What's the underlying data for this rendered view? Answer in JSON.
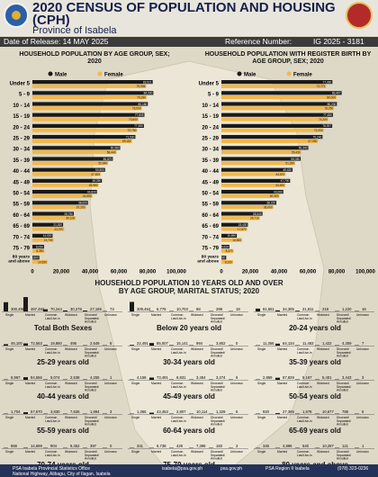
{
  "header": {
    "title": "2020 CENSUS OF POPULATION AND HOUSING (CPH)",
    "province": "Province of  Isabela",
    "date_label": "Date of Release: 14 MAY 2025",
    "ref_label": "Reference Number:",
    "ref_value": "IG 2025 - 3181"
  },
  "section1": {
    "left_title": "HOUSEHOLD POPULATION BY AGE GROUP, SEX; 2020",
    "right_title": "HOUSEHOLD POPULATION WITH REGISTER BIRTH BY AGE GROUP, SEX; 2020"
  },
  "section2": {
    "title_line1": "HOUSEHOLD POPULATION 10 YEARS OLD AND OVER",
    "title_line2": "BY AGE GROUP, MARITAL STATUS; 2020"
  },
  "colors": {
    "male": "#1a1a1a",
    "female": "#f2b84b"
  },
  "chart_data": [
    {
      "type": "bar",
      "title": "HOUSEHOLD POPULATION BY AGE GROUP, SEX; 2020",
      "orientation": "horizontal",
      "categories": [
        "Under 5",
        "5 - 9",
        "10 - 14",
        "15 - 19",
        "20 - 24",
        "25 - 29",
        "30 - 34",
        "35 - 39",
        "40 - 44",
        "45 - 49",
        "50 - 54",
        "55 - 59",
        "60 - 64",
        "65 - 69",
        "70 - 74",
        "75 - 79",
        "80 years and above"
      ],
      "series": [
        {
          "name": "Male",
          "values": [
            83521,
            84000,
            80180,
            77805,
            77450,
            71530,
            60960,
            55870,
            50500,
            48250,
            44800,
            38600,
            28750,
            21300,
            14000,
            8050,
            4800
          ]
        },
        {
          "name": "Female",
          "values": [
            79006,
            79330,
            76000,
            73600,
            72750,
            69180,
            58440,
            52640,
            47520,
            45960,
            41650,
            37200,
            30100,
            22070,
            14740,
            8350,
            10550
          ]
        }
      ],
      "xlim": [
        0,
        100000
      ],
      "xticks": [
        "0",
        "20,000",
        "40,000",
        "60,000",
        "80,000",
        "100,000"
      ],
      "legend": [
        "Male",
        "Female"
      ],
      "legend_position": "top"
    },
    {
      "type": "bar",
      "title": "HOUSEHOLD POPULATION WITH REGISTER BIRTH BY AGE GROUP, SEX; 2020",
      "orientation": "horizontal",
      "categories": [
        "Under 5",
        "5 - 9",
        "10 - 14",
        "15 - 19",
        "20 - 24",
        "25 - 29",
        "30 - 34",
        "35 - 39",
        "40 - 44",
        "45 - 49",
        "50 - 54",
        "55 - 59",
        "60 - 64",
        "65 - 69",
        "70 - 74",
        "75 - 79",
        "80 years and above"
      ],
      "series": [
        {
          "name": "Male",
          "values": [
            77060,
            83497,
            80200,
            77450,
            76937,
            70240,
            60340,
            55030,
            49420,
            47700,
            43000,
            38150,
            28540,
            18400,
            10690,
            5520,
            3320
          ]
        },
        {
          "name": "Female",
          "values": [
            72771,
            80000,
            78250,
            74200,
            71000,
            67050,
            55430,
            51290,
            44570,
            44400,
            40300,
            36000,
            26710,
            17870,
            14360,
            8470,
            8100
          ]
        }
      ],
      "xlim": [
        0,
        100000
      ],
      "xticks": [
        "0",
        "20,000",
        "40,000",
        "60,000",
        "80,000",
        "100,000"
      ],
      "legend": [
        "Male",
        "Female"
      ],
      "legend_position": "top"
    },
    {
      "type": "bar",
      "title": "HOUSEHOLD POPULATION 10 YEARS OLD AND OVER BY AGE GROUP, MARITAL STATUS; 2020",
      "categories": [
        "Single",
        "Married",
        "Common Law/Live-in",
        "Widowed",
        "Divorced/Separated/Annulled",
        "Unknown"
      ],
      "category_labels": [
        [
          "Single"
        ],
        [
          "Married"
        ],
        [
          "Common",
          "Law/Live-in"
        ],
        [
          "Widowed"
        ],
        [
          "Divorced/",
          "Separated/",
          "Annulled"
        ],
        [
          "Unknown"
        ]
      ],
      "panels": [
        {
          "name": "Total Both Sexes",
          "values": [
            300499,
            467492,
            70244,
            30278,
            27169,
            73
          ]
        },
        {
          "name": "Below 20 years old",
          "values": [
            309454,
            6776,
            10703,
            68,
            299,
            18
          ]
        },
        {
          "name": "20-24 years old",
          "values": [
            91561,
            34305,
            21811,
            218,
            1220,
            16
          ]
        },
        {
          "name": "25-29 years old",
          "values": [
            46100,
            72563,
            19880,
            495,
            2649,
            6
          ]
        },
        {
          "name": "30-34 years old",
          "values": [
            22491,
            85007,
            15141,
            994,
            3802,
            0
          ]
        },
        {
          "name": "35-39 years old",
          "values": [
            11356,
            64134,
            11483,
            1422,
            4309,
            7
          ]
        },
        {
          "name": "40-44 years old",
          "values": [
            6967,
            84556,
            9074,
            2538,
            4255,
            1
          ]
        },
        {
          "name": "45-49 years old",
          "values": [
            4158,
            73491,
            6831,
            3454,
            3274,
            6
          ]
        },
        {
          "name": "50-54 years old",
          "values": [
            2859,
            67829,
            5167,
            5401,
            3443,
            3
          ]
        },
        {
          "name": "55-59 years old",
          "values": [
            1704,
            57670,
            3830,
            7626,
            1994,
            3
          ]
        },
        {
          "name": "60-64 years old",
          "values": [
            1366,
            43453,
            2807,
            10114,
            1329,
            6
          ]
        },
        {
          "name": "65-69 years old",
          "values": [
            920,
            27365,
            1678,
            10677,
            786,
            6
          ]
        },
        {
          "name": "70-74 years old",
          "values": [
            656,
            14699,
            904,
            9452,
            397,
            0
          ]
        },
        {
          "name": "75-79 years old",
          "values": [
            341,
            6738,
            429,
            7398,
            183,
            3
          ]
        },
        {
          "name": "80 years and above",
          "values": [
            346,
            4896,
            540,
            10287,
            121,
            1
          ]
        }
      ]
    }
  ],
  "footer": {
    "left": "PSA Isabela Provincial Statistics Office",
    "address": "National Highway, Alibagu, City of Ilagan, Isabela",
    "email": "isabela@psa.gov.ph",
    "site": "psa.gov.ph",
    "fb": "PSA Region II Isabela",
    "phone": "(078) 323-0236"
  }
}
